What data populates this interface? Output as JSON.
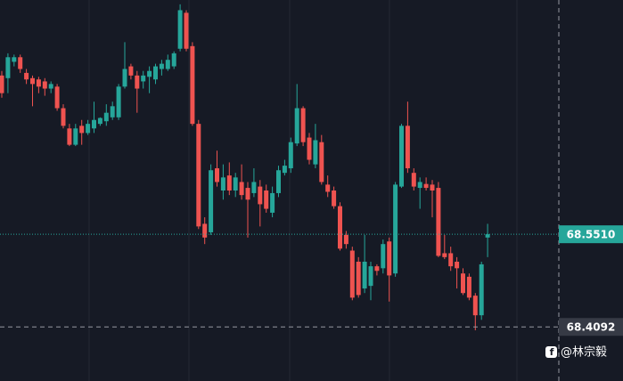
{
  "chart_data": {
    "type": "candlestick",
    "up_color": "#26a69a",
    "down_color": "#ef5350",
    "ylim": [
      68.3264,
      68.9096
    ],
    "ohlc": [
      [
        68.794,
        68.801,
        68.76,
        68.767
      ],
      [
        68.79,
        68.828,
        68.767,
        68.822
      ],
      [
        68.815,
        68.826,
        68.808,
        68.822
      ],
      [
        68.822,
        68.826,
        68.798,
        68.804
      ],
      [
        68.798,
        68.804,
        68.781,
        68.788
      ],
      [
        68.79,
        68.794,
        68.747,
        68.781
      ],
      [
        68.788,
        68.792,
        68.767,
        68.777
      ],
      [
        68.785,
        68.79,
        68.763,
        68.774
      ],
      [
        68.774,
        68.785,
        68.767,
        68.781
      ],
      [
        68.777,
        68.781,
        68.74,
        68.744
      ],
      [
        68.744,
        68.75,
        68.713,
        68.717
      ],
      [
        68.713,
        68.72,
        68.686,
        68.688
      ],
      [
        68.688,
        68.72,
        68.686,
        68.713
      ],
      [
        68.717,
        68.726,
        68.688,
        68.706
      ],
      [
        68.706,
        68.726,
        68.703,
        68.72
      ],
      [
        68.713,
        68.754,
        68.706,
        68.726
      ],
      [
        68.72,
        68.73,
        68.717,
        68.729
      ],
      [
        68.724,
        68.75,
        68.717,
        68.737
      ],
      [
        68.73,
        68.754,
        68.726,
        68.747
      ],
      [
        68.73,
        68.781,
        68.726,
        68.777
      ],
      [
        68.777,
        68.845,
        68.774,
        68.804
      ],
      [
        68.808,
        68.812,
        68.788,
        68.794
      ],
      [
        68.794,
        68.801,
        68.737,
        68.774
      ],
      [
        68.785,
        68.801,
        68.774,
        68.794
      ],
      [
        68.792,
        68.808,
        68.767,
        68.801
      ],
      [
        68.788,
        68.812,
        68.781,
        68.808
      ],
      [
        68.804,
        68.818,
        68.794,
        68.812
      ],
      [
        68.804,
        68.826,
        68.801,
        68.818
      ],
      [
        68.808,
        68.831,
        68.804,
        68.828
      ],
      [
        68.835,
        68.903,
        68.831,
        68.894
      ],
      [
        68.89,
        68.894,
        68.831,
        68.835
      ],
      [
        68.839,
        68.845,
        68.717,
        68.72
      ],
      [
        68.72,
        68.726,
        68.559,
        68.563
      ],
      [
        68.567,
        68.577,
        68.536,
        68.546
      ],
      [
        68.554,
        68.658,
        68.55,
        68.649
      ],
      [
        68.652,
        68.679,
        68.624,
        68.631
      ],
      [
        68.618,
        68.658,
        68.604,
        68.638
      ],
      [
        68.641,
        68.661,
        68.611,
        68.618
      ],
      [
        68.618,
        68.645,
        68.608,
        68.638
      ],
      [
        68.631,
        68.658,
        68.604,
        68.611
      ],
      [
        68.622,
        68.631,
        68.546,
        68.604
      ],
      [
        68.614,
        68.652,
        68.608,
        68.631
      ],
      [
        68.624,
        68.634,
        68.563,
        68.597
      ],
      [
        68.618,
        68.627,
        68.584,
        68.59
      ],
      [
        68.584,
        68.624,
        68.577,
        68.614
      ],
      [
        68.614,
        68.656,
        68.608,
        68.649
      ],
      [
        68.645,
        68.665,
        68.641,
        68.656
      ],
      [
        68.652,
        68.699,
        68.645,
        68.692
      ],
      [
        68.69,
        68.781,
        68.686,
        68.744
      ],
      [
        68.744,
        68.747,
        68.686,
        68.692
      ],
      [
        68.699,
        68.706,
        68.658,
        68.665
      ],
      [
        68.658,
        68.72,
        68.652,
        68.695
      ],
      [
        68.692,
        68.703,
        68.627,
        68.631
      ],
      [
        68.627,
        68.641,
        68.608,
        68.616
      ],
      [
        68.618,
        68.624,
        68.59,
        68.594
      ],
      [
        68.594,
        68.6,
        68.526,
        68.529
      ],
      [
        68.55,
        68.556,
        68.529,
        68.536
      ],
      [
        68.526,
        68.532,
        68.45,
        68.454
      ],
      [
        68.509,
        68.516,
        68.454,
        68.458
      ],
      [
        68.468,
        68.55,
        68.461,
        68.509
      ],
      [
        68.472,
        68.509,
        68.45,
        68.502
      ],
      [
        68.502,
        68.505,
        68.488,
        68.495
      ],
      [
        68.499,
        68.543,
        68.491,
        68.536
      ],
      [
        68.54,
        68.546,
        68.448,
        68.488
      ],
      [
        68.491,
        68.631,
        68.486,
        68.627
      ],
      [
        68.624,
        68.72,
        68.622,
        68.717
      ],
      [
        68.717,
        68.754,
        68.645,
        68.652
      ],
      [
        68.645,
        68.652,
        68.618,
        68.624
      ],
      [
        68.622,
        68.638,
        68.59,
        68.631
      ],
      [
        68.628,
        68.638,
        68.618,
        68.622
      ],
      [
        68.627,
        68.634,
        68.577,
        68.618
      ],
      [
        68.622,
        68.631,
        68.516,
        68.518
      ],
      [
        68.522,
        68.55,
        68.513,
        68.516
      ],
      [
        68.522,
        68.532,
        68.495,
        68.502
      ],
      [
        68.509,
        68.516,
        68.468,
        68.499
      ],
      [
        68.491,
        68.499,
        68.458,
        68.461
      ],
      [
        68.486,
        68.491,
        68.45,
        68.454
      ],
      [
        68.457,
        68.461,
        68.404,
        68.427
      ],
      [
        68.427,
        68.509,
        68.42,
        68.505
      ],
      [
        68.546,
        68.567,
        68.516,
        68.551
      ]
    ],
    "price_line": {
      "value": 68.551,
      "label": "68.5510",
      "color": "#26a69a"
    },
    "crosshair": {
      "value": 68.4092,
      "color": "#363a45"
    },
    "watermark": "@林宗毅"
  }
}
